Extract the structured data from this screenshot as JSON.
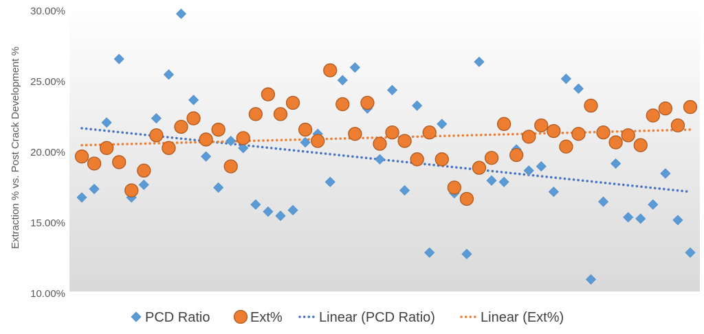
{
  "chart_data": {
    "type": "scatter",
    "title": "",
    "xlabel": "",
    "ylabel": "Extraction % vs. Post Crack Development %",
    "ylim": [
      0.1,
      0.3
    ],
    "yticks": [
      0.1,
      0.15,
      0.2,
      0.25,
      0.3
    ],
    "ytick_labels": [
      "10.00%",
      "15.00%",
      "20.00%",
      "25.00%",
      "30.00%"
    ],
    "x_count": 50,
    "grid": false,
    "legend_position": "bottom",
    "series": [
      {
        "name": "PCD Ratio",
        "marker": "diamond",
        "color": "#5b9bd5",
        "values": [
          0.168,
          0.174,
          0.221,
          0.266,
          0.168,
          0.177,
          0.224,
          0.255,
          0.298,
          0.237,
          0.197,
          0.175,
          0.208,
          0.203,
          0.163,
          0.158,
          0.155,
          0.159,
          0.207,
          0.213,
          0.179,
          0.251,
          0.26,
          0.231,
          0.195,
          0.244,
          0.173,
          0.233,
          0.129,
          0.22,
          0.171,
          0.128,
          0.264,
          0.18,
          0.179,
          0.202,
          0.187,
          0.19,
          0.172,
          0.252,
          0.245,
          0.11,
          0.165,
          0.192,
          0.154,
          0.153,
          0.163,
          0.185,
          0.152,
          0.129
        ]
      },
      {
        "name": "Ext%",
        "marker": "circle",
        "color": "#ed7d31",
        "values": [
          0.197,
          0.192,
          0.203,
          0.193,
          0.173,
          0.187,
          0.212,
          0.203,
          0.218,
          0.224,
          0.209,
          0.216,
          0.19,
          0.21,
          0.227,
          0.241,
          0.227,
          0.235,
          0.216,
          0.208,
          0.258,
          0.234,
          0.213,
          0.235,
          0.206,
          0.214,
          0.208,
          0.195,
          0.214,
          0.195,
          0.175,
          0.167,
          0.189,
          0.196,
          0.22,
          0.198,
          0.211,
          0.219,
          0.215,
          0.204,
          0.213,
          0.233,
          0.214,
          0.207,
          0.212,
          0.205,
          0.226,
          0.231,
          0.219,
          0.232
        ]
      },
      {
        "name": "Linear (PCD Ratio)",
        "type": "trendline",
        "color": "#4472c4",
        "start": 0.217,
        "end": 0.172
      },
      {
        "name": "Linear (Ext%)",
        "type": "trendline",
        "color": "#ed7d31",
        "start": 0.205,
        "end": 0.216
      }
    ]
  }
}
